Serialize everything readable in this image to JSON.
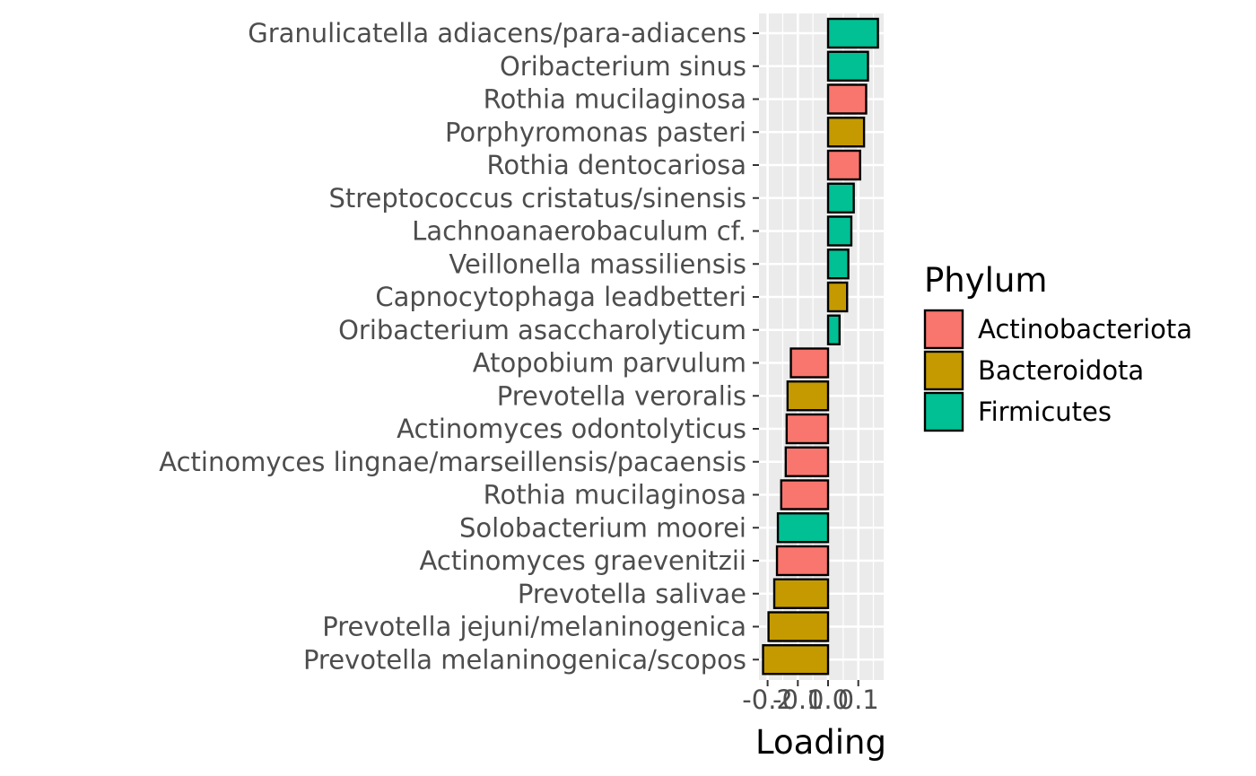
{
  "chart_data": {
    "type": "bar",
    "orientation": "horizontal",
    "title": "",
    "xlabel": "Loading",
    "ylabel": "",
    "xlim": [
      -0.22,
      0.19
    ],
    "xticks": [
      -0.2,
      -0.1,
      0.0,
      0.1
    ],
    "xtick_labels": [
      "-0.2",
      "-0.1",
      "0.0",
      "0.1"
    ],
    "grid": true,
    "legend": {
      "title": "Phylum",
      "position": "right",
      "entries": [
        {
          "name": "Actinobacteriota",
          "color": "#F8766D"
        },
        {
          "name": "Bacteroidota",
          "color": "#C49A00"
        },
        {
          "name": "Firmicutes",
          "color": "#00C094"
        }
      ]
    },
    "bars": [
      {
        "label": "Granulicatella adiacens/para-adiacens",
        "value": 0.165,
        "phylum": "Firmicutes"
      },
      {
        "label": "Oribacterium sinus",
        "value": 0.132,
        "phylum": "Firmicutes"
      },
      {
        "label": "Rothia mucilaginosa",
        "value": 0.126,
        "phylum": "Actinobacteriota"
      },
      {
        "label": "Porphyromonas pasteri",
        "value": 0.119,
        "phylum": "Bacteroidota"
      },
      {
        "label": "Rothia dentocariosa",
        "value": 0.106,
        "phylum": "Actinobacteriota"
      },
      {
        "label": "Streptococcus cristatus/sinensis",
        "value": 0.085,
        "phylum": "Firmicutes"
      },
      {
        "label": "Lachnoanaerobaculum cf.",
        "value": 0.077,
        "phylum": "Firmicutes"
      },
      {
        "label": "Veillonella massiliensis",
        "value": 0.067,
        "phylum": "Firmicutes"
      },
      {
        "label": "Capnocytophaga leadbetteri",
        "value": 0.063,
        "phylum": "Bacteroidota"
      },
      {
        "label": "Oribacterium asaccharolyticum",
        "value": 0.038,
        "phylum": "Firmicutes"
      },
      {
        "label": "Atopobium parvulum",
        "value": -0.123,
        "phylum": "Actinobacteriota"
      },
      {
        "label": "Prevotella veroralis",
        "value": -0.134,
        "phylum": "Bacteroidota"
      },
      {
        "label": "Actinomyces odontolyticus",
        "value": -0.137,
        "phylum": "Actinobacteriota"
      },
      {
        "label": "Actinomyces lingnae/marseillensis/pacaensis",
        "value": -0.14,
        "phylum": "Actinobacteriota"
      },
      {
        "label": "Rothia mucilaginosa",
        "value": -0.155,
        "phylum": "Actinobacteriota"
      },
      {
        "label": "Solobacterium moorei",
        "value": -0.166,
        "phylum": "Firmicutes"
      },
      {
        "label": "Actinomyces graevenitzii",
        "value": -0.169,
        "phylum": "Actinobacteriota"
      },
      {
        "label": "Prevotella salivae",
        "value": -0.178,
        "phylum": "Bacteroidota"
      },
      {
        "label": "Prevotella jejuni/melaninogenica",
        "value": -0.197,
        "phylum": "Bacteroidota"
      },
      {
        "label": "Prevotella melaninogenica/scopos",
        "value": -0.215,
        "phylum": "Bacteroidota"
      }
    ]
  }
}
